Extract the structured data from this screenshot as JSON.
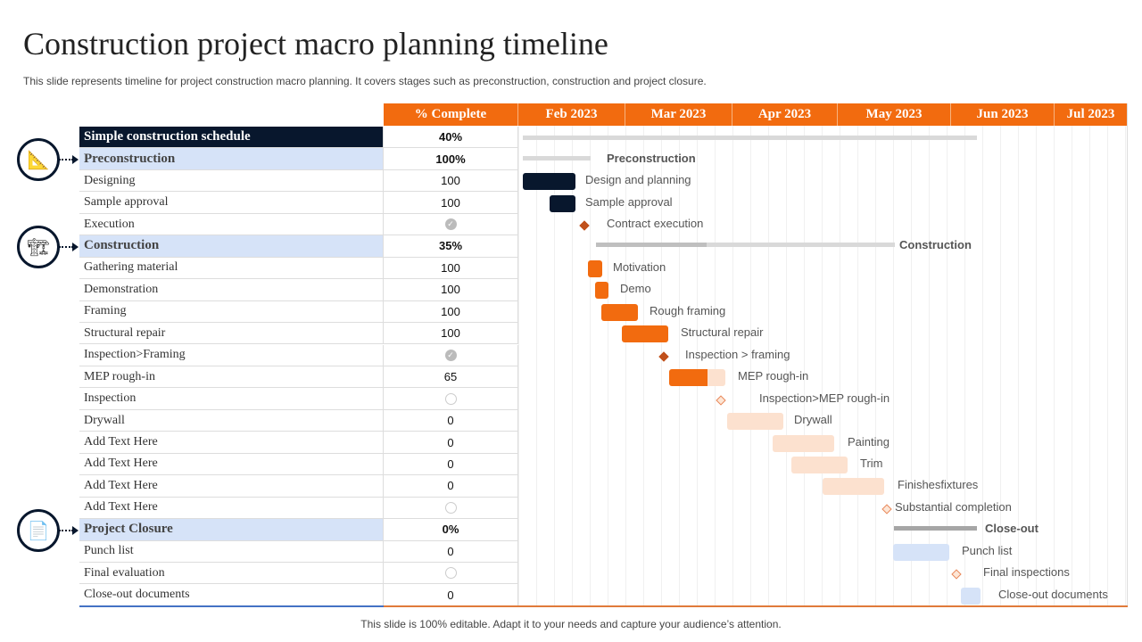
{
  "title": "Construction project macro planning timeline",
  "subtitle": "This slide represents timeline for project construction macro planning. It covers stages such as preconstruction, construction and project closure.",
  "footer": "This slide is 100% editable. Adapt it to your needs and capture your audience’s attention.",
  "header": {
    "pct": "% Complete",
    "months": [
      "Feb 2023",
      "Mar 2023",
      "Apr 2023",
      "May 2023",
      "Jun 2023",
      "Jul 2023"
    ]
  },
  "rows": [
    {
      "name": "Simple construction schedule",
      "value": "40%",
      "kind": "top"
    },
    {
      "name": "Preconstruction",
      "value": "100%",
      "kind": "sec"
    },
    {
      "name": "Designing",
      "value": "100"
    },
    {
      "name": "Sample approval",
      "value": "100"
    },
    {
      "name": "Execution",
      "value": "",
      "status": "check"
    },
    {
      "name": "Construction",
      "value": "35%",
      "kind": "sec"
    },
    {
      "name": "Gathering material",
      "value": "100"
    },
    {
      "name": "Demonstration",
      "value": "100"
    },
    {
      "name": "Framing",
      "value": "100"
    },
    {
      "name": "Structural repair",
      "value": "100"
    },
    {
      "name": "Inspection>Framing",
      "value": "",
      "status": "check"
    },
    {
      "name": "MEP rough-in",
      "value": "65"
    },
    {
      "name": "Inspection",
      "value": "",
      "status": "empty"
    },
    {
      "name": "Drywall",
      "value": "0"
    },
    {
      "name": "Add Text Here",
      "value": "0"
    },
    {
      "name": "Add Text Here",
      "value": "0"
    },
    {
      "name": "Add Text Here",
      "value": "0"
    },
    {
      "name": "Add Text Here",
      "value": "",
      "status": "empty"
    },
    {
      "name": "Project Closure",
      "value": "0%",
      "kind": "sec"
    },
    {
      "name": "Punch list",
      "value": "0"
    },
    {
      "name": "Final evaluation",
      "value": "",
      "status": "empty"
    },
    {
      "name": "Close-out documents",
      "value": "0"
    }
  ],
  "gantt_labels": [
    "",
    "Preconstruction",
    "Design and planning",
    "Sample approval",
    "Contract execution",
    "Construction",
    "Motivation",
    "Demo",
    "Rough framing",
    "Structural repair",
    "Inspection > framing",
    "MEP rough-in",
    "Inspection>MEP rough-in",
    "Drywall",
    "Painting",
    "Trim",
    "Finishesfixtures",
    "Substantial completion",
    "Close-out",
    "Punch list",
    "Final inspections",
    "Close-out documents"
  ],
  "phase_icons": [
    "blueprint-icon",
    "crane-icon",
    "document-check-icon"
  ],
  "colors": {
    "accent": "#f26b0f",
    "dark": "#08172d",
    "section": "#d6e3f8",
    "pending": "#fce1cf",
    "closeout": "#d6e3f8"
  }
}
